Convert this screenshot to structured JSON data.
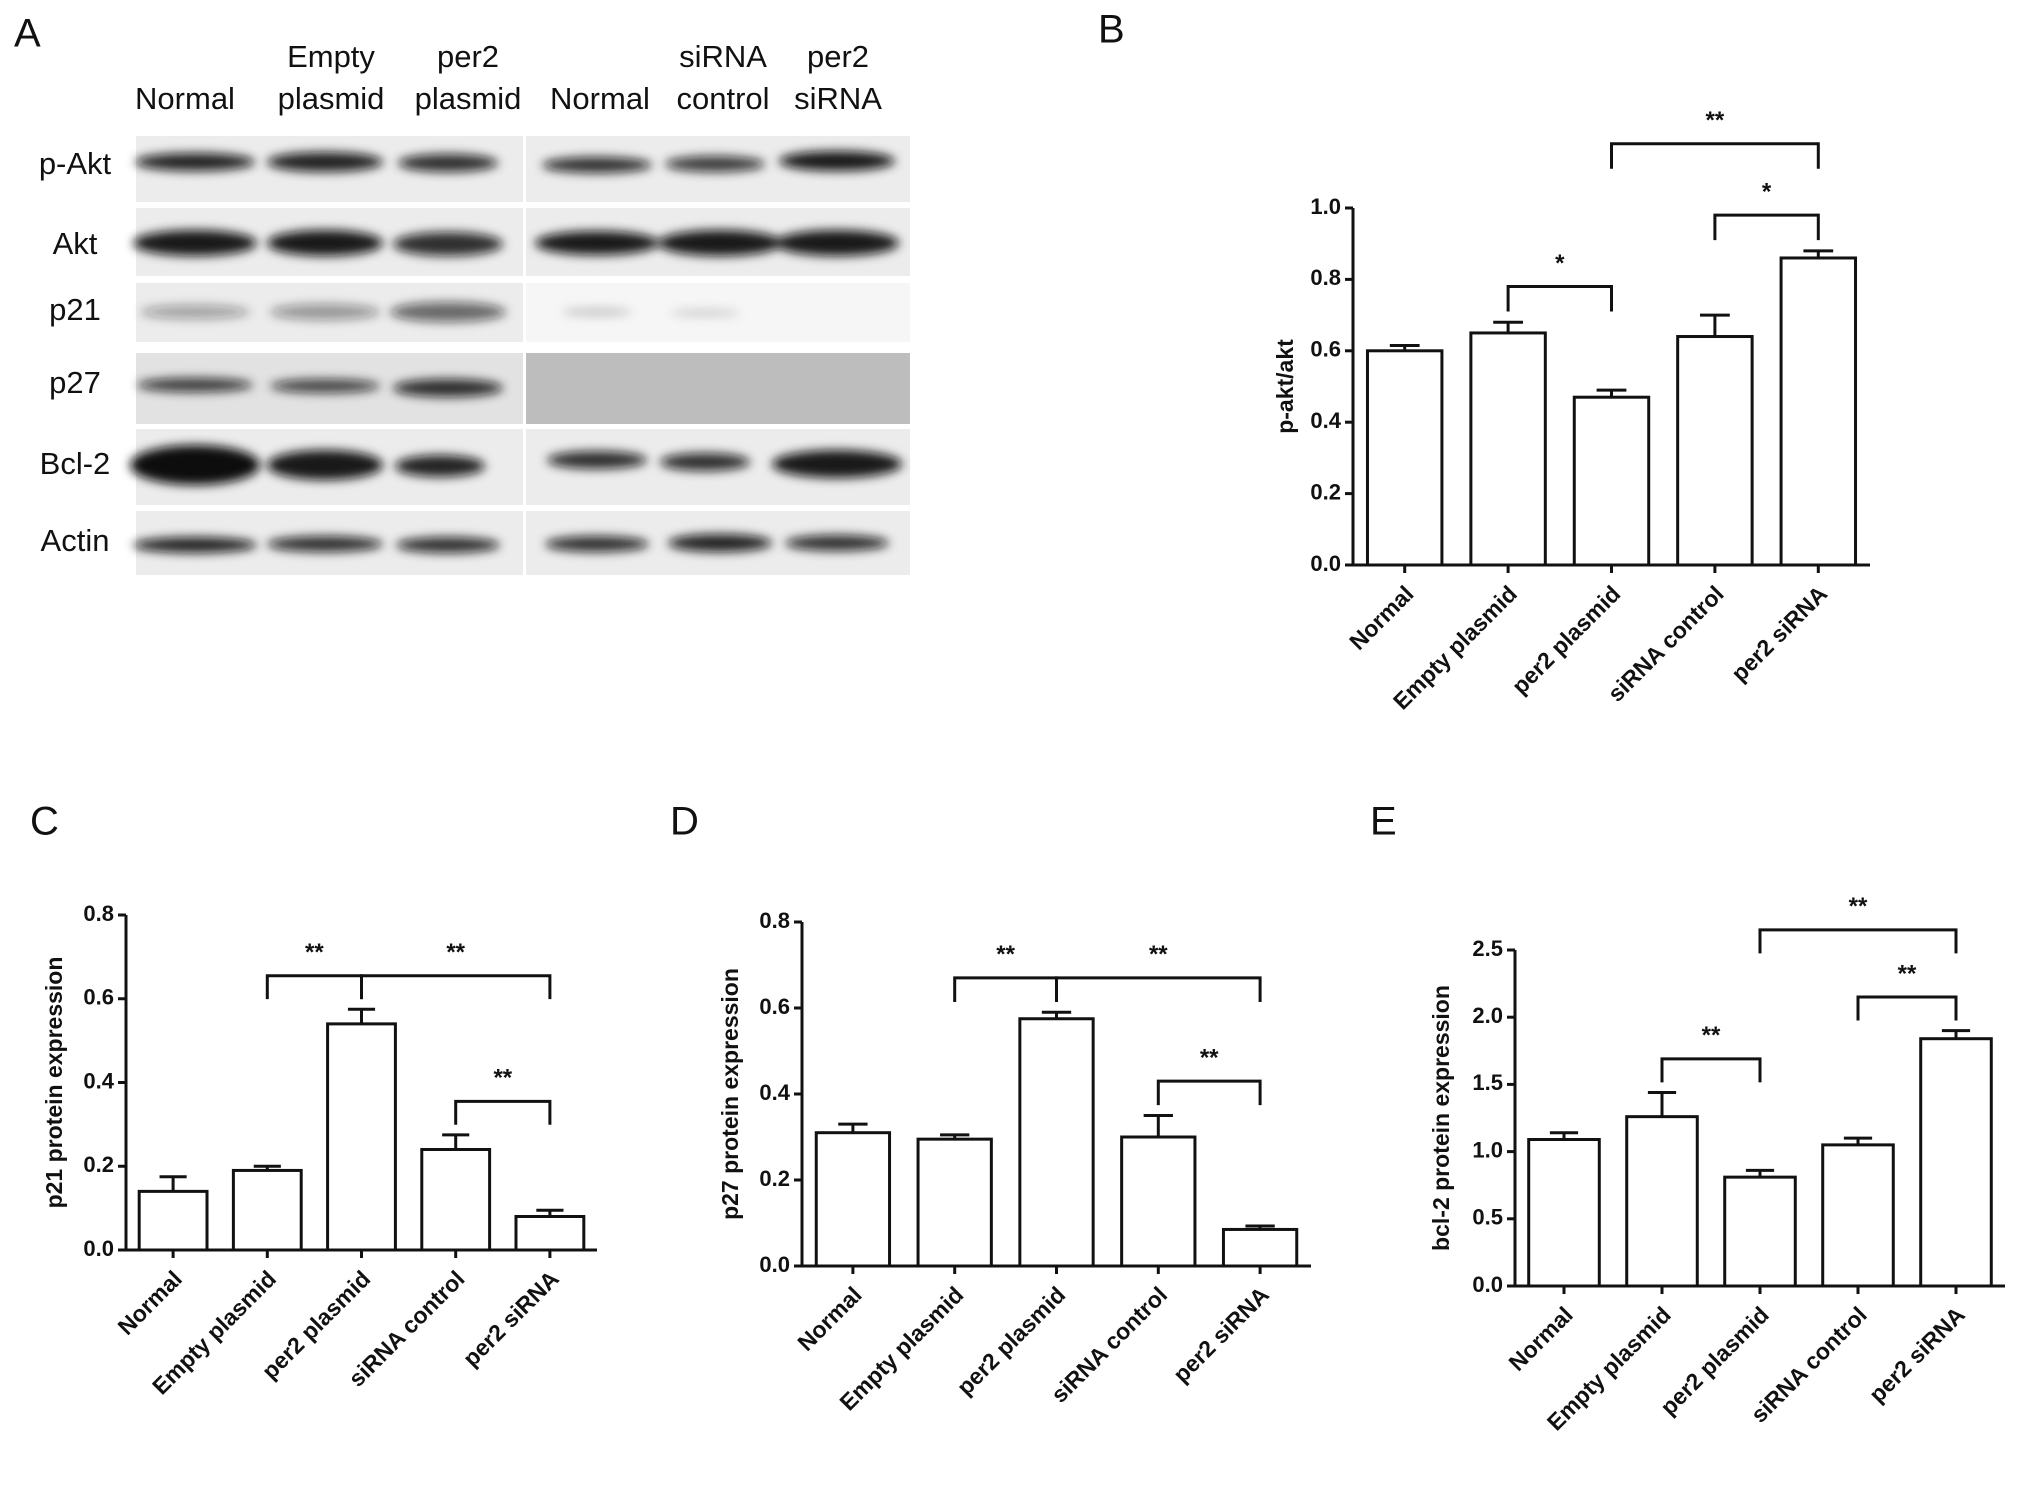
{
  "blot": {
    "panel_label": "A",
    "columns": [
      [
        "Normal"
      ],
      [
        "Empty",
        "plasmid"
      ],
      [
        "per2",
        "plasmid"
      ],
      [
        "Normal"
      ],
      [
        "siRNA",
        "control"
      ],
      [
        "per2",
        "siRNA"
      ]
    ],
    "rows": [
      "p-Akt",
      "Akt",
      "p21",
      "p27",
      "Bcl-2",
      "Actin"
    ]
  },
  "chart_data": [
    {
      "type": "bar",
      "panel_label": "B",
      "ylabel": "p-akt/akt",
      "categories": [
        "Normal",
        "Empty plasmid",
        "per2 plasmid",
        "siRNA control",
        "per2 siRNA"
      ],
      "values": [
        0.6,
        0.65,
        0.47,
        0.64,
        0.86
      ],
      "errors": [
        0.015,
        0.03,
        0.02,
        0.06,
        0.02
      ],
      "ylim": [
        0,
        1.0
      ],
      "yticks": [
        {
          "value": 0,
          "label": "0.0"
        },
        0.2,
        0.4,
        0.6,
        0.8,
        {
          "value": 1.0,
          "label": "1.0"
        }
      ],
      "brackets": [
        {
          "from": "Empty plasmid",
          "to": "per2 plasmid",
          "label": "*"
        },
        {
          "from": "siRNA control",
          "to": "per2 siRNA",
          "label": "*"
        },
        {
          "from": "per2 plasmid",
          "to": "per2 siRNA",
          "label": "**"
        }
      ]
    },
    {
      "type": "bar",
      "panel_label": "C",
      "ylabel": "p21 protein expression",
      "categories": [
        "Normal",
        "Empty plasmid",
        "per2 plasmid",
        "siRNA control",
        "per2 siRNA"
      ],
      "values": [
        0.14,
        0.19,
        0.54,
        0.24,
        0.08
      ],
      "errors": [
        0.035,
        0.01,
        0.035,
        0.035,
        0.015
      ],
      "ylim": [
        0,
        0.8
      ],
      "yticks": [
        {
          "value": 0,
          "label": "0.0"
        },
        0.2,
        0.4,
        0.6,
        0.8
      ],
      "brackets": [
        {
          "from": "Empty plasmid",
          "to": "per2 plasmid",
          "label": "**"
        },
        {
          "from": "siRNA control",
          "to": "per2 siRNA",
          "label": "**"
        },
        {
          "from": "per2 plasmid",
          "to": "per2 siRNA",
          "label": "**"
        }
      ]
    },
    {
      "type": "bar",
      "panel_label": "D",
      "ylabel": "p27 protein expression",
      "categories": [
        "Normal",
        "Empty plasmid",
        "per2 plasmid",
        "siRNA control",
        "per2 siRNA"
      ],
      "values": [
        0.31,
        0.295,
        0.575,
        0.3,
        0.085
      ],
      "errors": [
        0.02,
        0.01,
        0.015,
        0.05,
        0.008
      ],
      "ylim": [
        0,
        0.8
      ],
      "yticks": [
        {
          "value": 0,
          "label": "0.0"
        },
        0.2,
        0.4,
        0.6,
        0.8
      ],
      "brackets": [
        {
          "from": "Empty plasmid",
          "to": "per2 plasmid",
          "label": "**"
        },
        {
          "from": "siRNA control",
          "to": "per2 siRNA",
          "label": "**"
        },
        {
          "from": "per2 plasmid",
          "to": "per2 siRNA",
          "label": "**"
        }
      ]
    },
    {
      "type": "bar",
      "panel_label": "E",
      "ylabel": "bcl-2 protein expression",
      "categories": [
        "Normal",
        "Empty plasmid",
        "per2 plasmid",
        "siRNA control",
        "per2 siRNA"
      ],
      "values": [
        1.09,
        1.26,
        0.81,
        1.05,
        1.84
      ],
      "errors": [
        0.05,
        0.18,
        0.05,
        0.05,
        0.06
      ],
      "ylim": [
        0,
        2.5
      ],
      "yticks": [
        {
          "value": 0,
          "label": "0.0"
        },
        0.5,
        {
          "value": 1,
          "label": "1.0"
        },
        1.5,
        {
          "value": 2,
          "label": "2.0"
        },
        2.5
      ],
      "brackets": [
        {
          "from": "Empty plasmid",
          "to": "per2 plasmid",
          "label": "**"
        },
        {
          "from": "siRNA control",
          "to": "per2 siRNA",
          "label": "**"
        },
        {
          "from": "per2 plasmid",
          "to": "per2 siRNA",
          "label": "**"
        }
      ]
    }
  ]
}
